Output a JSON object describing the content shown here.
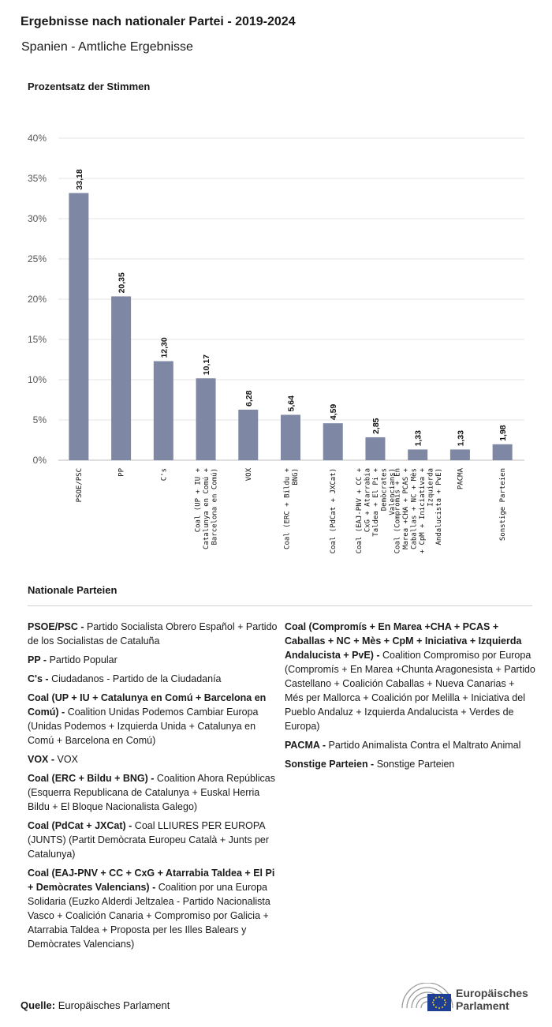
{
  "header": {
    "title": "Ergebnisse nach nationaler Partei - 2019-2024",
    "subtitle": "Spanien - Amtliche Ergebnisse"
  },
  "chart_data": {
    "type": "bar",
    "ylabel": "Prozentsatz der Stimmen",
    "ylim": [
      0,
      40
    ],
    "yticks": [
      "0%",
      "5%",
      "10%",
      "15%",
      "20%",
      "25%",
      "30%",
      "35%",
      "40%"
    ],
    "grid": true,
    "bar_color": "#7e87a3",
    "categories": [
      [
        "PSOE/PSC"
      ],
      [
        "PP"
      ],
      [
        "C's"
      ],
      [
        "Coal (UP + IU +",
        "Catalunya en Comú +",
        "Barcelona en Comú)"
      ],
      [
        "VOX"
      ],
      [
        "Coal (ERC + Bildu +",
        "BNG)"
      ],
      [
        "Coal (PdCat + JXCat)"
      ],
      [
        "Coal (EAJ-PNV + CC +",
        "CxG + Atarrabia",
        "Taldea + El Pi +",
        "Demòcrates",
        "Valencians)"
      ],
      [
        "Coal (Compromís + En",
        "Marea +CHA + PCAS +",
        "Caballas + NC + Mès",
        "+ CpM + Iniciativa +",
        "Izquierda",
        "Andalucista + PvE)"
      ],
      [
        "PACMA"
      ],
      [
        "Sonstige Parteien"
      ]
    ],
    "values": [
      33.18,
      20.35,
      12.3,
      10.17,
      6.28,
      5.64,
      4.59,
      2.85,
      1.33,
      1.33,
      1.98
    ],
    "value_labels": [
      "33,18",
      "20,35",
      "12,30",
      "10,17",
      "6,28",
      "5,64",
      "4,59",
      "2,85",
      "1,33",
      "1,33",
      "1,98"
    ]
  },
  "legend": {
    "title": "Nationale Parteien",
    "left": [
      {
        "abbr": "PSOE/PSC -",
        "text": "Partido Socialista Obrero Español + Partido de los Socialistas de Cataluña"
      },
      {
        "abbr": "PP -",
        "text": "Partido Popular"
      },
      {
        "abbr": "C's -",
        "text": "Ciudadanos - Partido de la Ciudadanía"
      },
      {
        "abbr": "Coal (UP + IU + Catalunya en Comú + Barcelona en Comú) -",
        "text": "Coalition Unidas Podemos Cambiar Europa (Unidas Podemos + Izquierda Unida + Catalunya en Comú + Barcelona en Comú)"
      },
      {
        "abbr": "VOX -",
        "text": "VOX"
      },
      {
        "abbr": "Coal (ERC + Bildu + BNG) -",
        "text": "Coalition Ahora Repúblicas (Esquerra Republicana de Catalunya + Euskal Herria Bildu + El Bloque Nacionalista Galego)"
      },
      {
        "abbr": "Coal (PdCat + JXCat) -",
        "text": "Coal LLIURES PER EUROPA (JUNTS) (Partit Demòcrata Europeu Català + Junts per Catalunya)"
      },
      {
        "abbr": "Coal (EAJ-PNV + CC + CxG + Atarrabia Taldea + El Pi + Demòcrates Valencians) -",
        "text": "Coalition por una Europa Solidaria (Euzko Alderdi Jeltzalea - Partido Nacionalista Vasco + Coalición Canaria + Compromiso por Galicia + Atarrabia Taldea + Proposta per les Illes Balears y Demòcrates Valencians)"
      }
    ],
    "right": [
      {
        "abbr": "Coal (Compromís + En Marea +CHA + PCAS + Caballas + NC + Mès + CpM + Iniciativa + Izquierda Andalucista + PvE) -",
        "text": "Coalition Compromiso por Europa (Compromís + En Marea +Chunta Aragonesista + Partido Castellano + Coalición Caballas + Nueva Canarias + Més per Mallorca + Coalición por Melilla + Iniciativa del Pueblo Andaluz + Izquierda Andalucista + Verdes de Europa)"
      },
      {
        "abbr": "PACMA -",
        "text": "Partido Animalista Contra el Maltrato Animal"
      },
      {
        "abbr": "Sonstige Parteien -",
        "text": "Sonstige Parteien"
      }
    ]
  },
  "footer": {
    "source_label": "Quelle:",
    "source_value": "Europäisches Parlament",
    "logo_line1": "Europäisches",
    "logo_line2": "Parlament"
  }
}
